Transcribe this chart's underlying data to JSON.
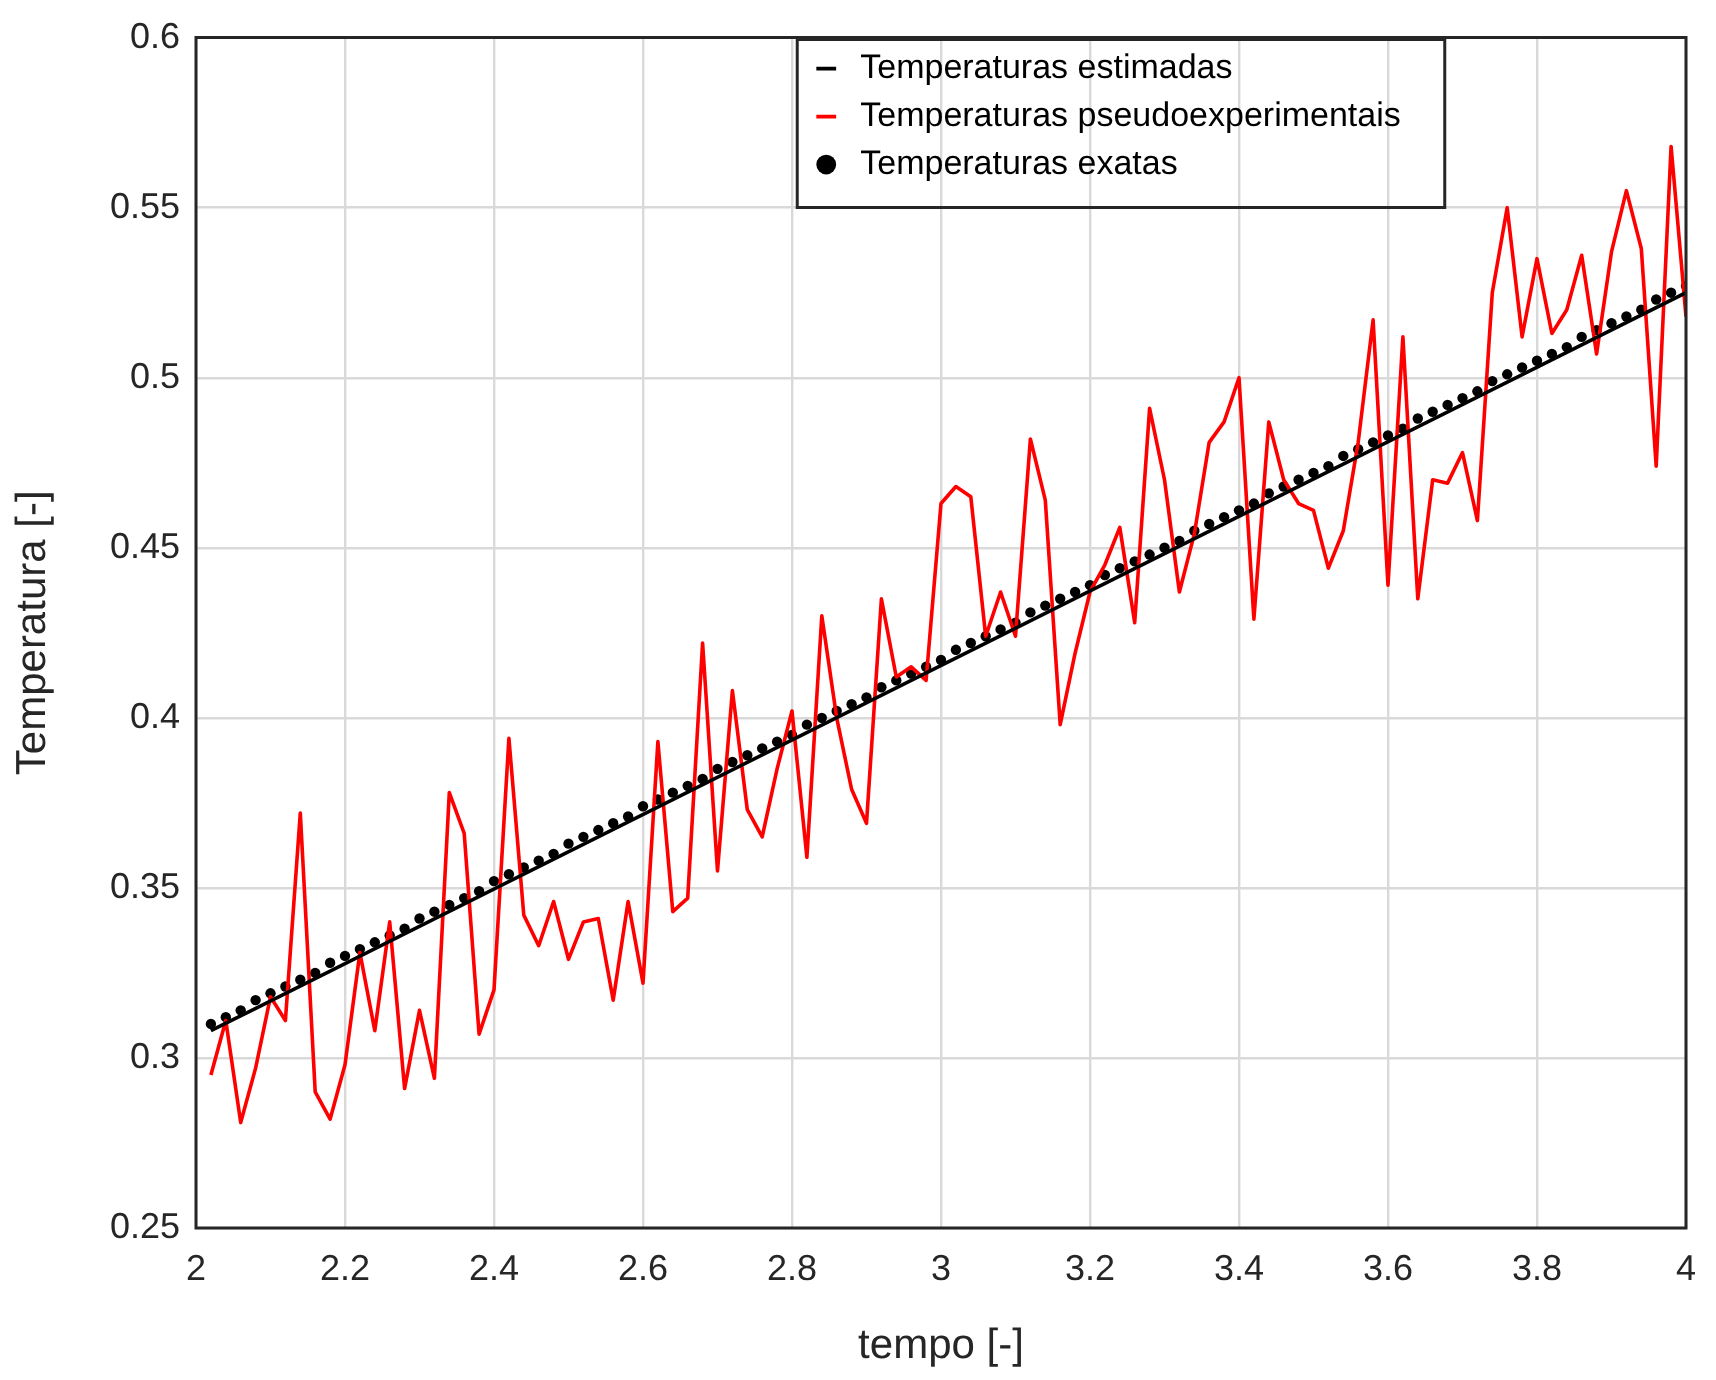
{
  "chart_data": {
    "type": "line",
    "xlabel": "tempo [-]",
    "ylabel": "Temperatura [-]",
    "x": [
      2.02,
      2.04,
      2.06,
      2.08,
      2.1,
      2.12,
      2.14,
      2.16,
      2.18,
      2.2,
      2.22,
      2.24,
      2.26,
      2.28,
      2.3,
      2.32,
      2.34,
      2.36,
      2.38,
      2.4,
      2.42,
      2.44,
      2.46,
      2.48,
      2.5,
      2.52,
      2.54,
      2.56,
      2.58,
      2.6,
      2.62,
      2.64,
      2.66,
      2.68,
      2.7,
      2.72,
      2.74,
      2.76,
      2.78,
      2.8,
      2.82,
      2.84,
      2.86,
      2.88,
      2.9,
      2.92,
      2.94,
      2.96,
      2.98,
      3,
      3.02,
      3.04,
      3.06,
      3.08,
      3.1,
      3.12,
      3.14,
      3.16,
      3.18,
      3.2,
      3.22,
      3.24,
      3.26,
      3.28,
      3.3,
      3.32,
      3.34,
      3.36,
      3.38,
      3.4,
      3.42,
      3.44,
      3.46,
      3.48,
      3.5,
      3.52,
      3.54,
      3.56,
      3.58,
      3.6,
      3.62,
      3.64,
      3.66,
      3.68,
      3.7,
      3.72,
      3.74,
      3.76,
      3.78,
      3.8,
      3.82,
      3.84,
      3.86,
      3.88,
      3.9,
      3.92,
      3.94,
      3.96,
      3.98,
      4
    ],
    "series": [
      {
        "name": "Temperaturas estimadas",
        "type": "line",
        "color": "#000000",
        "x": [
          2.02,
          4
        ],
        "values": [
          0.308,
          0.525
        ]
      },
      {
        "name": "Temperaturas pseudoexperimentais",
        "type": "line",
        "color": "#ff0000",
        "values": [
          0.295,
          0.311,
          0.281,
          0.297,
          0.318,
          0.311,
          0.372,
          0.29,
          0.282,
          0.298,
          0.331,
          0.308,
          0.34,
          0.291,
          0.314,
          0.294,
          0.378,
          0.366,
          0.307,
          0.32,
          0.394,
          0.342,
          0.333,
          0.346,
          0.329,
          0.34,
          0.341,
          0.317,
          0.346,
          0.322,
          0.393,
          0.343,
          0.347,
          0.422,
          0.355,
          0.408,
          0.373,
          0.365,
          0.385,
          0.402,
          0.359,
          0.43,
          0.4,
          0.379,
          0.369,
          0.435,
          0.412,
          0.415,
          0.411,
          0.463,
          0.468,
          0.465,
          0.424,
          0.437,
          0.424,
          0.482,
          0.464,
          0.398,
          0.419,
          0.437,
          0.445,
          0.456,
          0.428,
          0.491,
          0.47,
          0.437,
          0.454,
          0.481,
          0.487,
          0.5,
          0.429,
          0.487,
          0.47,
          0.463,
          0.461,
          0.444,
          0.455,
          0.481,
          0.517,
          0.439,
          0.512,
          0.435,
          0.47,
          0.469,
          0.478,
          0.458,
          0.525,
          0.55,
          0.512,
          0.535,
          0.513,
          0.52,
          0.536,
          0.507,
          0.537,
          0.555,
          0.538,
          0.474,
          0.568,
          0.518
        ]
      },
      {
        "name": "Temperaturas exatas",
        "type": "scatter",
        "marker": "circle",
        "color": "#000000",
        "values": [
          0.31,
          0.312,
          0.314,
          0.317,
          0.319,
          0.321,
          0.323,
          0.325,
          0.328,
          0.33,
          0.332,
          0.334,
          0.336,
          0.338,
          0.341,
          0.343,
          0.345,
          0.347,
          0.349,
          0.352,
          0.354,
          0.356,
          0.358,
          0.36,
          0.363,
          0.365,
          0.367,
          0.369,
          0.371,
          0.374,
          0.376,
          0.378,
          0.38,
          0.382,
          0.385,
          0.387,
          0.389,
          0.391,
          0.393,
          0.395,
          0.398,
          0.4,
          0.402,
          0.404,
          0.406,
          0.409,
          0.411,
          0.413,
          0.415,
          0.417,
          0.42,
          0.422,
          0.424,
          0.426,
          0.428,
          0.431,
          0.433,
          0.435,
          0.437,
          0.439,
          0.442,
          0.444,
          0.446,
          0.448,
          0.45,
          0.452,
          0.455,
          0.457,
          0.459,
          0.461,
          0.463,
          0.466,
          0.468,
          0.47,
          0.472,
          0.474,
          0.477,
          0.479,
          0.481,
          0.483,
          0.485,
          0.488,
          0.49,
          0.492,
          0.494,
          0.496,
          0.499,
          0.501,
          0.503,
          0.505,
          0.507,
          0.509,
          0.512,
          0.514,
          0.516,
          0.518,
          0.52,
          0.523,
          0.525,
          0.527
        ]
      }
    ],
    "xlim": [
      2,
      4
    ],
    "xticks": [
      2,
      2.2,
      2.4,
      2.6,
      2.8,
      3,
      3.2,
      3.4,
      3.6,
      3.8,
      4
    ],
    "ylim": [
      0.25,
      0.6
    ],
    "yticks": [
      0.25,
      0.3,
      0.35,
      0.4,
      0.45,
      0.5,
      0.55,
      0.6
    ],
    "grid": true,
    "legend": "top"
  }
}
